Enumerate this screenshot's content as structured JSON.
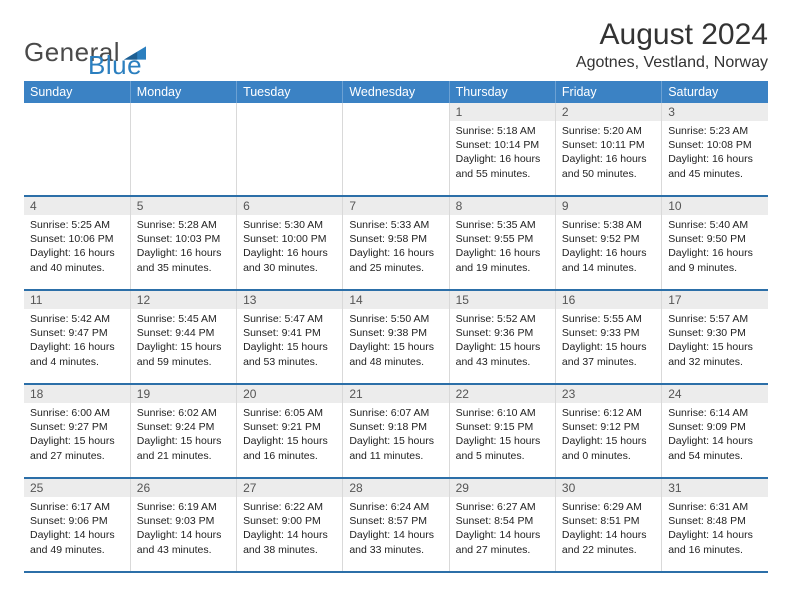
{
  "brand": {
    "word1": "General",
    "word2": "Blue"
  },
  "title": "August 2024",
  "location": "Agotnes, Vestland, Norway",
  "colors": {
    "header_blue": "#3b82c4",
    "rule_blue": "#2c6fa8",
    "cell_border": "#d9d9d9",
    "logo_dark": "#4a4a4a",
    "logo_blue": "#2b7fbf",
    "daynum_bg": "#ececec",
    "page_bg": "#ffffff"
  },
  "fonts": {
    "base_pt": 10.5,
    "title_pt": 30,
    "location_pt": 16,
    "weekday_pt": 12.5,
    "daynum_pt": 12
  },
  "weekdays": [
    "Sunday",
    "Monday",
    "Tuesday",
    "Wednesday",
    "Thursday",
    "Friday",
    "Saturday"
  ],
  "layout": {
    "first_weekday_index": 4,
    "rows": 5,
    "cols": 7
  },
  "days": [
    {
      "n": 1,
      "sunrise": "5:18 AM",
      "sunset": "10:14 PM",
      "daylight": "16 hours and 55 minutes."
    },
    {
      "n": 2,
      "sunrise": "5:20 AM",
      "sunset": "10:11 PM",
      "daylight": "16 hours and 50 minutes."
    },
    {
      "n": 3,
      "sunrise": "5:23 AM",
      "sunset": "10:08 PM",
      "daylight": "16 hours and 45 minutes."
    },
    {
      "n": 4,
      "sunrise": "5:25 AM",
      "sunset": "10:06 PM",
      "daylight": "16 hours and 40 minutes."
    },
    {
      "n": 5,
      "sunrise": "5:28 AM",
      "sunset": "10:03 PM",
      "daylight": "16 hours and 35 minutes."
    },
    {
      "n": 6,
      "sunrise": "5:30 AM",
      "sunset": "10:00 PM",
      "daylight": "16 hours and 30 minutes."
    },
    {
      "n": 7,
      "sunrise": "5:33 AM",
      "sunset": "9:58 PM",
      "daylight": "16 hours and 25 minutes."
    },
    {
      "n": 8,
      "sunrise": "5:35 AM",
      "sunset": "9:55 PM",
      "daylight": "16 hours and 19 minutes."
    },
    {
      "n": 9,
      "sunrise": "5:38 AM",
      "sunset": "9:52 PM",
      "daylight": "16 hours and 14 minutes."
    },
    {
      "n": 10,
      "sunrise": "5:40 AM",
      "sunset": "9:50 PM",
      "daylight": "16 hours and 9 minutes."
    },
    {
      "n": 11,
      "sunrise": "5:42 AM",
      "sunset": "9:47 PM",
      "daylight": "16 hours and 4 minutes."
    },
    {
      "n": 12,
      "sunrise": "5:45 AM",
      "sunset": "9:44 PM",
      "daylight": "15 hours and 59 minutes."
    },
    {
      "n": 13,
      "sunrise": "5:47 AM",
      "sunset": "9:41 PM",
      "daylight": "15 hours and 53 minutes."
    },
    {
      "n": 14,
      "sunrise": "5:50 AM",
      "sunset": "9:38 PM",
      "daylight": "15 hours and 48 minutes."
    },
    {
      "n": 15,
      "sunrise": "5:52 AM",
      "sunset": "9:36 PM",
      "daylight": "15 hours and 43 minutes."
    },
    {
      "n": 16,
      "sunrise": "5:55 AM",
      "sunset": "9:33 PM",
      "daylight": "15 hours and 37 minutes."
    },
    {
      "n": 17,
      "sunrise": "5:57 AM",
      "sunset": "9:30 PM",
      "daylight": "15 hours and 32 minutes."
    },
    {
      "n": 18,
      "sunrise": "6:00 AM",
      "sunset": "9:27 PM",
      "daylight": "15 hours and 27 minutes."
    },
    {
      "n": 19,
      "sunrise": "6:02 AM",
      "sunset": "9:24 PM",
      "daylight": "15 hours and 21 minutes."
    },
    {
      "n": 20,
      "sunrise": "6:05 AM",
      "sunset": "9:21 PM",
      "daylight": "15 hours and 16 minutes."
    },
    {
      "n": 21,
      "sunrise": "6:07 AM",
      "sunset": "9:18 PM",
      "daylight": "15 hours and 11 minutes."
    },
    {
      "n": 22,
      "sunrise": "6:10 AM",
      "sunset": "9:15 PM",
      "daylight": "15 hours and 5 minutes."
    },
    {
      "n": 23,
      "sunrise": "6:12 AM",
      "sunset": "9:12 PM",
      "daylight": "15 hours and 0 minutes."
    },
    {
      "n": 24,
      "sunrise": "6:14 AM",
      "sunset": "9:09 PM",
      "daylight": "14 hours and 54 minutes."
    },
    {
      "n": 25,
      "sunrise": "6:17 AM",
      "sunset": "9:06 PM",
      "daylight": "14 hours and 49 minutes."
    },
    {
      "n": 26,
      "sunrise": "6:19 AM",
      "sunset": "9:03 PM",
      "daylight": "14 hours and 43 minutes."
    },
    {
      "n": 27,
      "sunrise": "6:22 AM",
      "sunset": "9:00 PM",
      "daylight": "14 hours and 38 minutes."
    },
    {
      "n": 28,
      "sunrise": "6:24 AM",
      "sunset": "8:57 PM",
      "daylight": "14 hours and 33 minutes."
    },
    {
      "n": 29,
      "sunrise": "6:27 AM",
      "sunset": "8:54 PM",
      "daylight": "14 hours and 27 minutes."
    },
    {
      "n": 30,
      "sunrise": "6:29 AM",
      "sunset": "8:51 PM",
      "daylight": "14 hours and 22 minutes."
    },
    {
      "n": 31,
      "sunrise": "6:31 AM",
      "sunset": "8:48 PM",
      "daylight": "14 hours and 16 minutes."
    }
  ],
  "labels": {
    "sunrise": "Sunrise: ",
    "sunset": "Sunset: ",
    "daylight": "Daylight: "
  }
}
